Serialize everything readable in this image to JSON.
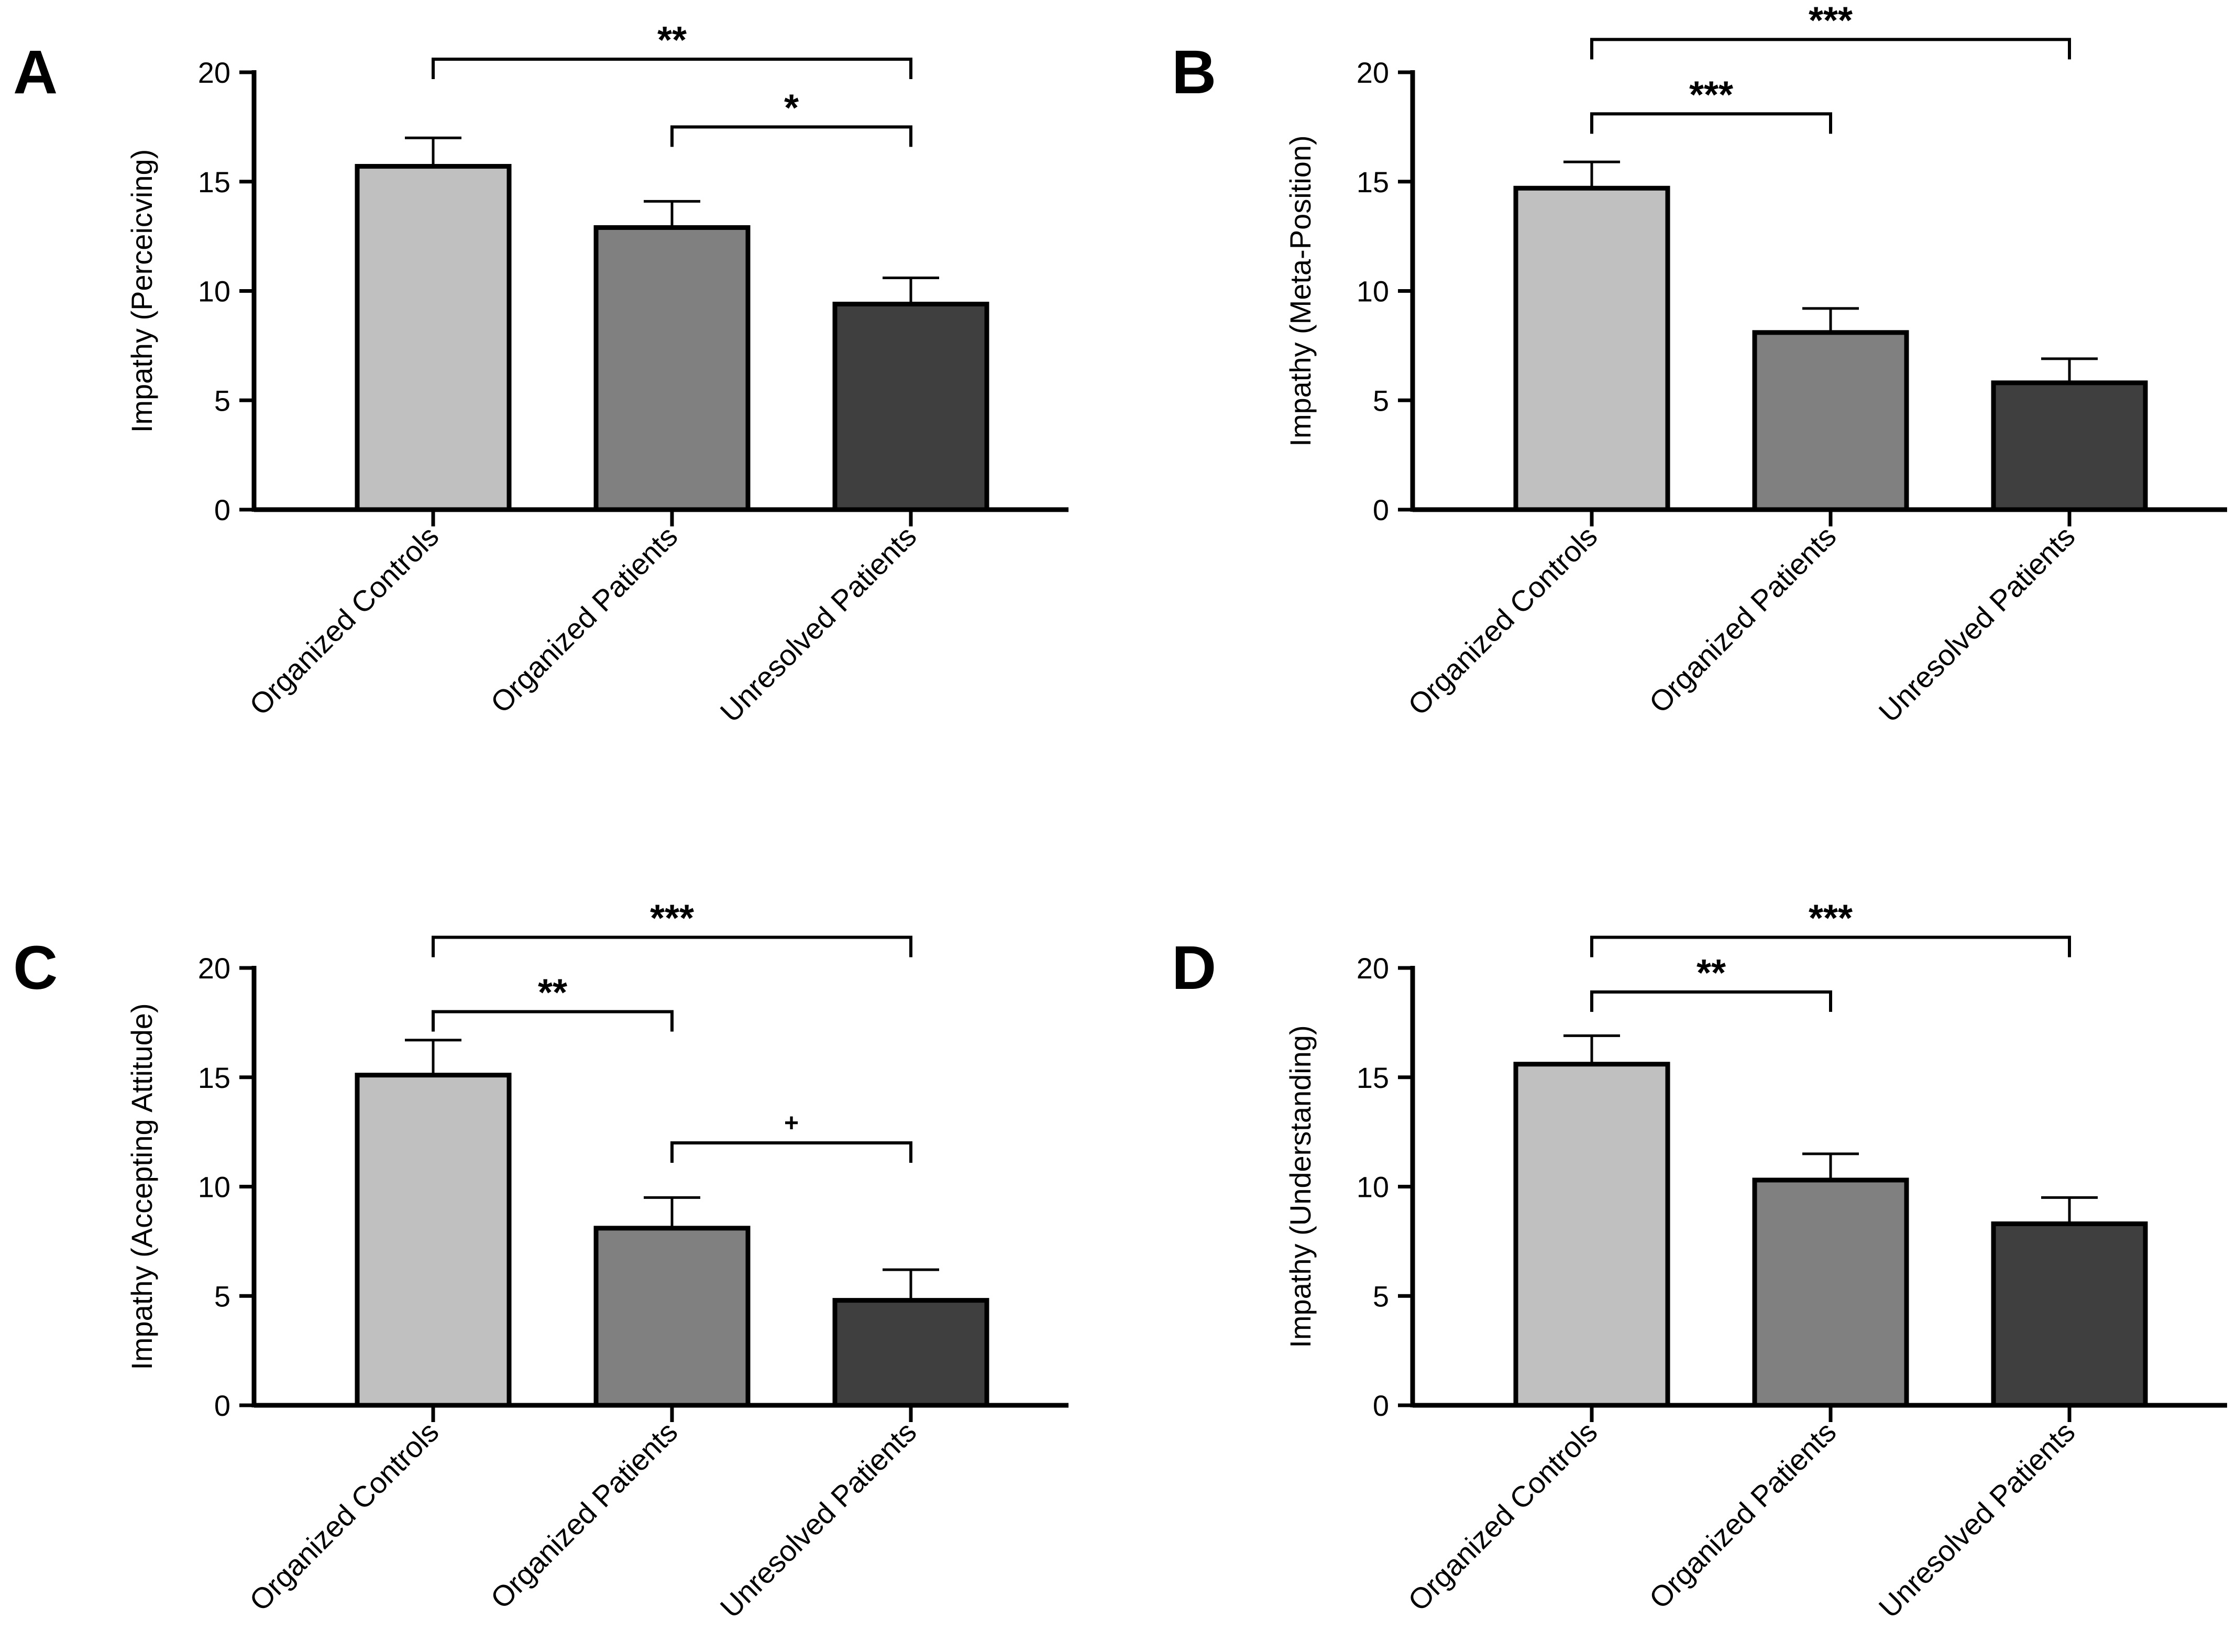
{
  "colors": {
    "bar_fills": [
      "#c0c0c0",
      "#808080",
      "#3f3f3f"
    ],
    "ink": "#000000"
  },
  "chart_data": [
    {
      "panel": "A",
      "type": "bar",
      "categories": [
        "Organized Controls",
        "Organized Patients",
        "Unresolved Patients"
      ],
      "values": [
        15.7,
        12.9,
        9.4
      ],
      "errors": [
        1.3,
        1.2,
        1.2
      ],
      "ylabel": "Impathy (Perceicving)",
      "ylim": [
        0,
        20
      ],
      "yticks": [
        "0",
        "5",
        "10",
        "15",
        "20"
      ],
      "significance": [
        {
          "from": 0,
          "to": 2,
          "label": "**",
          "level": 20.6
        },
        {
          "from": 1,
          "to": 2,
          "label": "*",
          "level": 17.5
        }
      ]
    },
    {
      "panel": "B",
      "type": "bar",
      "categories": [
        "Organized Controls",
        "Organized Patients",
        "Unresolved Patients"
      ],
      "values": [
        14.7,
        8.1,
        5.8
      ],
      "errors": [
        1.2,
        1.1,
        1.1
      ],
      "ylabel": "Impathy (Meta-Position)",
      "ylim": [
        0,
        20
      ],
      "yticks": [
        "0",
        "5",
        "10",
        "15",
        "20"
      ],
      "significance": [
        {
          "from": 0,
          "to": 2,
          "label": "***",
          "level": 21.5
        },
        {
          "from": 0,
          "to": 1,
          "label": "***",
          "level": 18.1
        }
      ]
    },
    {
      "panel": "C",
      "type": "bar",
      "categories": [
        "Organized Controls",
        "Organized Patients",
        "Unresolved Patients"
      ],
      "values": [
        15.1,
        8.1,
        4.8
      ],
      "errors": [
        1.6,
        1.4,
        1.4
      ],
      "ylabel": "Impathy (Accepting Attitude)",
      "ylim": [
        0,
        20
      ],
      "yticks": [
        "0",
        "5",
        "10",
        "15",
        "20"
      ],
      "significance": [
        {
          "from": 0,
          "to": 2,
          "label": "***",
          "level": 21.4
        },
        {
          "from": 0,
          "to": 1,
          "label": "**",
          "level": 18.0
        },
        {
          "from": 1,
          "to": 2,
          "label": "+",
          "level": 12.0
        }
      ]
    },
    {
      "panel": "D",
      "type": "bar",
      "categories": [
        "Organized Controls",
        "Organized Patients",
        "Unresolved Patients"
      ],
      "values": [
        15.6,
        10.3,
        8.3
      ],
      "errors": [
        1.3,
        1.2,
        1.2
      ],
      "ylabel": "Impathy (Understanding)",
      "ylim": [
        0,
        20
      ],
      "yticks": [
        "0",
        "5",
        "10",
        "15",
        "20"
      ],
      "significance": [
        {
          "from": 0,
          "to": 2,
          "label": "***",
          "level": 21.4
        },
        {
          "from": 0,
          "to": 1,
          "label": "**",
          "level": 18.9
        }
      ]
    }
  ]
}
